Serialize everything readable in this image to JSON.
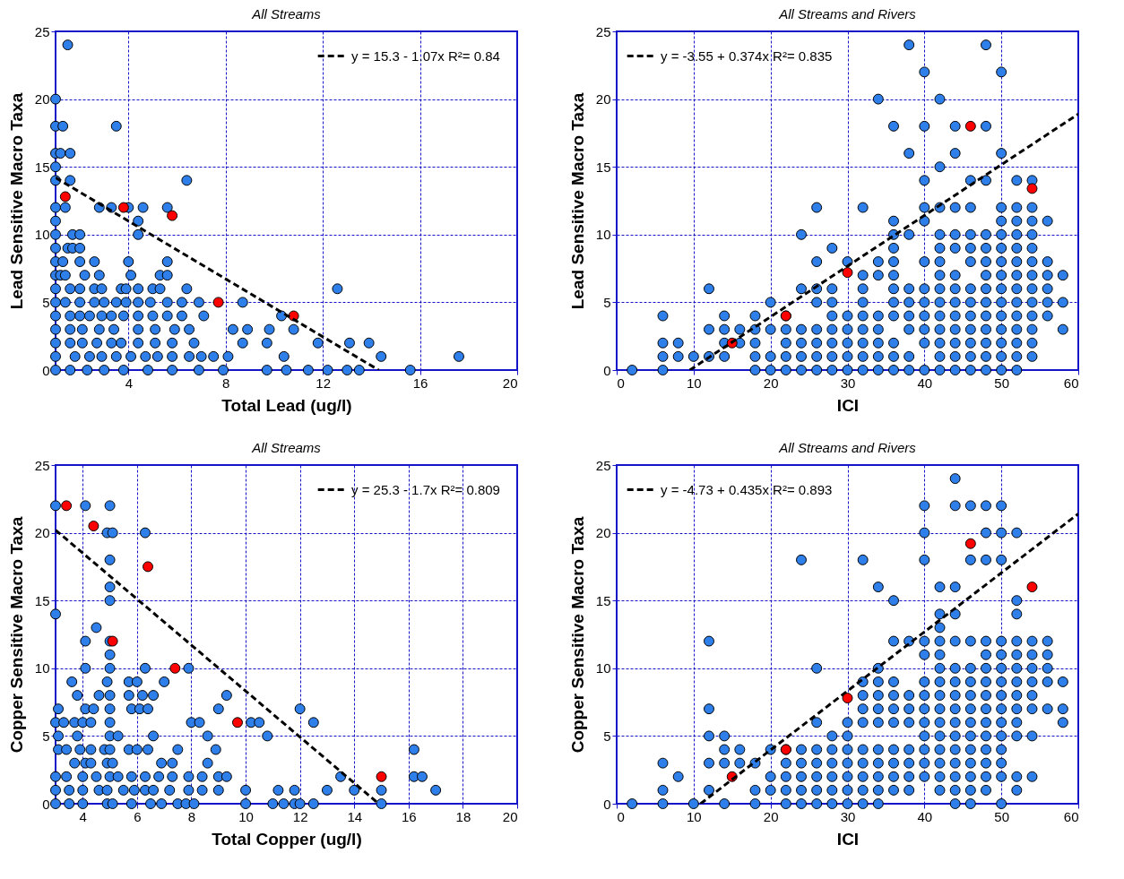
{
  "chart_data": [
    {
      "type": "scatter",
      "title": "All Streams",
      "xlabel": "Total Lead (ug/l)",
      "ylabel": "Lead Sensitive Macro Taxa",
      "xlim": [
        1,
        20
      ],
      "xticks": [
        4,
        8,
        12,
        16,
        20
      ],
      "ylim": [
        0,
        25
      ],
      "yticks": [
        0,
        5,
        10,
        15,
        20,
        25
      ],
      "grid": true,
      "legend": "top right",
      "marker": "circle",
      "series": [
        {
          "color": "#2f7fea",
          "x": [
            1.5,
            1.0,
            1.0,
            1.3,
            3.5,
            1.0,
            1.2,
            1.6,
            1.0,
            1.0,
            1.6,
            6.4,
            1.0,
            1.4,
            2.8,
            3.3,
            4.0,
            4.6,
            5.6,
            1.0,
            4.4,
            1.0,
            1.7,
            2.0,
            4.4,
            1.0,
            1.5,
            1.7,
            2.0,
            1.0,
            1.3,
            2.0,
            2.6,
            4.0,
            5.6,
            1.0,
            1.2,
            1.4,
            2.2,
            2.8,
            4.1,
            5.3,
            5.6,
            1.0,
            1.6,
            2.0,
            2.6,
            2.9,
            3.7,
            3.9,
            4.4,
            5.0,
            5.3,
            6.4,
            12.6,
            1.0,
            1.4,
            2.0,
            2.6,
            3.0,
            3.5,
            3.9,
            4.4,
            4.9,
            5.6,
            6.2,
            6.9,
            8.7,
            1.0,
            1.6,
            2.0,
            2.4,
            2.9,
            3.3,
            3.8,
            4.4,
            5.0,
            5.6,
            6.2,
            7.1,
            10.3,
            1.0,
            1.6,
            2.1,
            2.8,
            3.4,
            4.4,
            5.1,
            5.9,
            6.5,
            8.3,
            8.9,
            9.8,
            10.8,
            1.0,
            1.6,
            2.1,
            2.7,
            3.3,
            3.7,
            4.4,
            5.1,
            5.8,
            6.7,
            8.7,
            9.7,
            11.8,
            13.1,
            13.9,
            1.0,
            1.8,
            2.4,
            2.9,
            3.5,
            4.1,
            4.7,
            5.2,
            5.8,
            6.5,
            7.0,
            7.5,
            8.1,
            10.4,
            14.4,
            17.6,
            1.0,
            1.6,
            2.3,
            3.0,
            3.8,
            4.8,
            5.8,
            6.9,
            7.9,
            9.7,
            10.5,
            11.4,
            12.2,
            13.0,
            13.5,
            15.6
          ],
          "values": [
            24,
            20,
            18,
            18,
            18,
            16,
            16,
            16,
            15,
            14,
            14,
            14,
            12,
            12,
            12,
            12,
            12,
            12,
            12,
            11,
            11,
            10,
            10,
            10,
            10,
            9,
            9,
            9,
            9,
            8,
            8,
            8,
            8,
            8,
            8,
            7,
            7,
            7,
            7,
            7,
            7,
            7,
            7,
            6,
            6,
            6,
            6,
            6,
            6,
            6,
            6,
            6,
            6,
            6,
            6,
            5,
            5,
            5,
            5,
            5,
            5,
            5,
            5,
            5,
            5,
            5,
            5,
            5,
            4,
            4,
            4,
            4,
            4,
            4,
            4,
            4,
            4,
            4,
            4,
            4,
            4,
            3,
            3,
            3,
            3,
            3,
            3,
            3,
            3,
            3,
            3,
            3,
            3,
            3,
            2,
            2,
            2,
            2,
            2,
            2,
            2,
            2,
            2,
            2,
            2,
            2,
            2,
            2,
            2,
            1,
            1,
            1,
            1,
            1,
            1,
            1,
            1,
            1,
            1,
            1,
            1,
            1,
            1,
            1,
            1,
            0,
            0,
            0,
            0,
            0,
            0,
            0,
            0,
            0,
            0,
            0,
            0,
            0,
            0,
            0,
            0
          ]
        },
        {
          "color": "#ff0000",
          "x": [
            1.4,
            3.8,
            5.8,
            7.7,
            10.8
          ],
          "values": [
            12.8,
            12,
            11.4,
            5,
            4
          ]
        },
        {
          "type": "line",
          "name": "y = 15.3 - 1.07x   R²= 0.84",
          "color": "#000000",
          "line_style": "dashed",
          "marker": "none",
          "x": [
            1,
            14.3
          ],
          "values": [
            14.2,
            0
          ]
        }
      ]
    },
    {
      "type": "scatter",
      "title": "All Streams and Rivers",
      "xlabel": "ICI",
      "ylabel": "Lead Sensitive Macro Taxa",
      "xlim": [
        0,
        60
      ],
      "xticks": [
        0,
        10,
        20,
        30,
        40,
        50,
        60
      ],
      "ylim": [
        0,
        25
      ],
      "yticks": [
        0,
        5,
        10,
        15,
        20,
        25
      ],
      "grid": true,
      "legend": "top left",
      "marker": "circle",
      "series": [
        {
          "color": "#2f7fea",
          "x": [
            2,
            6,
            6,
            6,
            6,
            8,
            8,
            10,
            12,
            12,
            12,
            14,
            14,
            14,
            14,
            16,
            16,
            18,
            18,
            18,
            18,
            18,
            20,
            20,
            20,
            20,
            22,
            22,
            22,
            22,
            22,
            24,
            24,
            24,
            24,
            24,
            24,
            26,
            26,
            26,
            26,
            26,
            26,
            26,
            26,
            28,
            28,
            28,
            28,
            28,
            28,
            28,
            28,
            30,
            30,
            30,
            30,
            30,
            30,
            32,
            32,
            32,
            32,
            32,
            32,
            32,
            32,
            32,
            34,
            34,
            34,
            34,
            34,
            34,
            34,
            34,
            36,
            36,
            36,
            36,
            36,
            36,
            36,
            36,
            36,
            36,
            36,
            36,
            38,
            38,
            38,
            38,
            38,
            38,
            38,
            38,
            38,
            40,
            40,
            40,
            40,
            40,
            40,
            40,
            40,
            40,
            40,
            40,
            40,
            42,
            42,
            42,
            42,
            42,
            42,
            42,
            42,
            42,
            42,
            42,
            42,
            42,
            42,
            44,
            44,
            44,
            44,
            44,
            44,
            44,
            44,
            44,
            44,
            44,
            44,
            44,
            46,
            46,
            46,
            46,
            46,
            46,
            46,
            46,
            46,
            46,
            46,
            46,
            48,
            48,
            48,
            48,
            48,
            48,
            48,
            48,
            48,
            48,
            48,
            48,
            48,
            48,
            50,
            50,
            50,
            50,
            50,
            50,
            50,
            50,
            50,
            50,
            50,
            50,
            50,
            50,
            50,
            52,
            52,
            52,
            52,
            52,
            52,
            52,
            52,
            52,
            52,
            52,
            52,
            52,
            52,
            54,
            54,
            54,
            54,
            54,
            54,
            54,
            54,
            54,
            54,
            54,
            54,
            54,
            56,
            56,
            56,
            56,
            56,
            56,
            58,
            58,
            58
          ],
          "values": [
            0,
            0,
            1,
            2,
            4,
            1,
            2,
            1,
            1,
            3,
            6,
            1,
            2,
            3,
            4,
            2,
            3,
            0,
            1,
            2,
            3,
            4,
            0,
            1,
            3,
            5,
            0,
            1,
            2,
            3,
            4,
            0,
            1,
            2,
            3,
            6,
            10,
            0,
            1,
            2,
            3,
            5,
            6,
            8,
            12,
            0,
            1,
            2,
            3,
            4,
            5,
            6,
            9,
            0,
            1,
            2,
            3,
            4,
            8,
            0,
            1,
            2,
            3,
            4,
            5,
            6,
            7,
            12,
            0,
            1,
            2,
            3,
            4,
            7,
            8,
            20,
            0,
            1,
            2,
            4,
            5,
            6,
            7,
            8,
            9,
            10,
            11,
            18,
            0,
            1,
            3,
            4,
            5,
            6,
            10,
            16,
            24,
            0,
            2,
            3,
            4,
            5,
            6,
            8,
            11,
            12,
            14,
            18,
            22,
            0,
            1,
            2,
            3,
            4,
            5,
            6,
            7,
            8,
            9,
            10,
            12,
            15,
            20,
            0,
            1,
            2,
            3,
            4,
            5,
            6,
            7,
            9,
            10,
            12,
            16,
            18,
            0,
            1,
            2,
            3,
            4,
            5,
            6,
            8,
            9,
            10,
            12,
            14,
            0,
            1,
            2,
            3,
            4,
            5,
            6,
            7,
            8,
            9,
            10,
            14,
            18,
            24,
            0,
            1,
            2,
            3,
            4,
            5,
            6,
            7,
            8,
            9,
            10,
            11,
            12,
            16,
            22,
            0,
            1,
            2,
            3,
            4,
            5,
            6,
            7,
            8,
            9,
            10,
            11,
            12,
            14,
            1,
            2,
            3,
            4,
            5,
            6,
            7,
            8,
            9,
            10,
            11,
            12,
            14,
            4,
            5,
            6,
            7,
            8,
            11,
            3,
            5,
            7
          ]
        },
        {
          "color": "#ff0000",
          "x": [
            15,
            22,
            30,
            46,
            54
          ],
          "values": [
            2,
            4,
            7.2,
            18,
            13.4
          ]
        },
        {
          "type": "line",
          "name": "y = -3.55 + 0.374x   R²= 0.835",
          "color": "#000000",
          "line_style": "dashed",
          "marker": "none",
          "x": [
            9.5,
            60
          ],
          "values": [
            0,
            18.9
          ]
        }
      ]
    },
    {
      "type": "scatter",
      "title": "All Streams",
      "xlabel": "Total Copper (ug/l)",
      "ylabel": "Copper Sensitive Macro Taxa",
      "xlim": [
        3,
        20
      ],
      "xticks": [
        4,
        6,
        8,
        10,
        12,
        14,
        16,
        18,
        20
      ],
      "ylim": [
        0,
        25
      ],
      "yticks": [
        0,
        5,
        10,
        15,
        20,
        25
      ],
      "grid": true,
      "legend": "top right",
      "marker": "circle",
      "series": [
        {
          "color": "#2f7fea",
          "x": [
            3.0,
            4.1,
            5.0,
            4.9,
            5.1,
            6.3,
            5.0,
            5.0,
            5.0,
            3.0,
            4.5,
            4.1,
            5.0,
            5.0,
            4.1,
            5.0,
            6.3,
            7.9,
            3.6,
            4.9,
            5.7,
            6.0,
            7.0,
            3.8,
            4.6,
            5.0,
            5.7,
            6.2,
            6.6,
            9.3,
            3.1,
            4.1,
            4.4,
            5.0,
            5.8,
            6.1,
            6.4,
            9.0,
            12.0,
            3.0,
            3.3,
            3.7,
            4.0,
            4.3,
            5.0,
            8.0,
            8.3,
            10.2,
            10.5,
            12.5,
            3.1,
            3.8,
            5.0,
            5.3,
            6.6,
            8.6,
            10.8,
            3.1,
            3.4,
            3.9,
            4.3,
            4.8,
            5.0,
            5.7,
            6.0,
            6.4,
            7.5,
            8.9,
            16.2,
            3.7,
            4.1,
            4.3,
            4.9,
            5.1,
            6.9,
            7.3,
            8.6,
            3.0,
            3.4,
            4.0,
            4.5,
            5.0,
            5.3,
            5.8,
            6.3,
            6.8,
            7.3,
            7.9,
            8.4,
            9.0,
            9.3,
            13.5,
            16.2,
            16.5,
            3.0,
            3.5,
            4.0,
            4.6,
            4.9,
            5.5,
            5.9,
            6.3,
            6.6,
            7.2,
            7.9,
            8.4,
            9.0,
            10.0,
            11.2,
            11.8,
            13.0,
            14.0,
            15.0,
            17.0,
            3.0,
            3.5,
            4.0,
            4.9,
            5.1,
            5.8,
            6.5,
            6.9,
            7.5,
            7.8,
            8.1,
            10.0,
            11.0,
            11.4,
            11.8,
            12.0,
            12.5,
            15.0
          ],
          "values": [
            22,
            22,
            22,
            20,
            20,
            20,
            18,
            16,
            15,
            14,
            13,
            12,
            12,
            11,
            10,
            10,
            10,
            10,
            9,
            9,
            9,
            9,
            9,
            8,
            8,
            8,
            8,
            8,
            8,
            8,
            7,
            7,
            7,
            7,
            7,
            7,
            7,
            7,
            7,
            6,
            6,
            6,
            6,
            6,
            6,
            6,
            6,
            6,
            6,
            6,
            5,
            5,
            5,
            5,
            5,
            5,
            5,
            4,
            4,
            4,
            4,
            4,
            4,
            4,
            4,
            4,
            4,
            4,
            4,
            3,
            3,
            3,
            3,
            3,
            3,
            3,
            3,
            2,
            2,
            2,
            2,
            2,
            2,
            2,
            2,
            2,
            2,
            2,
            2,
            2,
            2,
            2,
            2,
            2,
            1,
            1,
            1,
            1,
            1,
            1,
            1,
            1,
            1,
            1,
            1,
            1,
            1,
            1,
            1,
            1,
            1,
            1,
            1,
            1,
            0,
            0,
            0,
            0,
            0,
            0,
            0,
            0,
            0,
            0,
            0,
            0,
            0,
            0,
            0,
            0,
            0,
            0
          ]
        },
        {
          "color": "#ff0000",
          "x": [
            3.4,
            4.4,
            5.1,
            6.4,
            7.4,
            9.7,
            15.0
          ],
          "values": [
            22,
            20.5,
            12,
            17.5,
            10,
            6,
            2
          ]
        },
        {
          "type": "line",
          "name": "y = 25.3 - 1.7x   R²= 0.809",
          "color": "#000000",
          "line_style": "dashed",
          "marker": "none",
          "x": [
            3,
            14.9
          ],
          "values": [
            20.2,
            0
          ]
        }
      ]
    },
    {
      "type": "scatter",
      "title": "All Streams and Rivers",
      "xlabel": "ICI",
      "ylabel": "Copper Sensitive Macro Taxa",
      "xlim": [
        0,
        60
      ],
      "xticks": [
        0,
        10,
        20,
        30,
        40,
        50,
        60
      ],
      "ylim": [
        0,
        25
      ],
      "yticks": [
        0,
        5,
        10,
        15,
        20,
        25
      ],
      "grid": true,
      "legend": "top left",
      "marker": "circle",
      "series": [
        {
          "color": "#2f7fea",
          "x": [
            2,
            6,
            6,
            6,
            8,
            10,
            12,
            12,
            12,
            12,
            12,
            14,
            14,
            14,
            14,
            16,
            16,
            18,
            18,
            18,
            20,
            20,
            20,
            22,
            22,
            22,
            22,
            22,
            24,
            24,
            24,
            24,
            24,
            24,
            26,
            26,
            26,
            26,
            26,
            26,
            26,
            28,
            28,
            28,
            28,
            28,
            28,
            30,
            30,
            30,
            30,
            30,
            30,
            30,
            32,
            32,
            32,
            32,
            32,
            32,
            32,
            32,
            32,
            32,
            34,
            34,
            34,
            34,
            34,
            34,
            34,
            34,
            34,
            34,
            34,
            36,
            36,
            36,
            36,
            36,
            36,
            36,
            36,
            36,
            36,
            38,
            38,
            38,
            38,
            38,
            38,
            38,
            38,
            40,
            40,
            40,
            40,
            40,
            40,
            40,
            40,
            40,
            40,
            40,
            40,
            40,
            42,
            42,
            42,
            42,
            42,
            42,
            42,
            42,
            42,
            42,
            42,
            42,
            42,
            42,
            42,
            44,
            44,
            44,
            44,
            44,
            44,
            44,
            44,
            44,
            44,
            44,
            44,
            44,
            44,
            44,
            44,
            46,
            46,
            46,
            46,
            46,
            46,
            46,
            46,
            46,
            46,
            46,
            46,
            46,
            46,
            48,
            48,
            48,
            48,
            48,
            48,
            48,
            48,
            48,
            48,
            48,
            48,
            48,
            48,
            48,
            50,
            50,
            50,
            50,
            50,
            50,
            50,
            50,
            50,
            50,
            50,
            50,
            50,
            50,
            50,
            52,
            52,
            52,
            52,
            52,
            52,
            52,
            52,
            52,
            52,
            52,
            52,
            52,
            54,
            54,
            54,
            54,
            54,
            54,
            54,
            54,
            56,
            56,
            56,
            56,
            56,
            58,
            58,
            58
          ],
          "values": [
            0,
            0,
            1,
            3,
            2,
            0,
            1,
            3,
            5,
            7,
            12,
            0,
            3,
            4,
            5,
            3,
            4,
            0,
            1,
            3,
            1,
            2,
            4,
            0,
            1,
            2,
            3,
            4,
            0,
            1,
            2,
            3,
            4,
            18,
            0,
            1,
            2,
            3,
            4,
            6,
            10,
            0,
            1,
            2,
            3,
            4,
            5,
            0,
            1,
            2,
            3,
            4,
            5,
            6,
            0,
            1,
            2,
            3,
            4,
            6,
            7,
            8,
            9,
            18,
            0,
            1,
            2,
            3,
            4,
            6,
            7,
            8,
            9,
            10,
            16,
            1,
            2,
            3,
            4,
            6,
            7,
            8,
            9,
            12,
            15,
            1,
            2,
            3,
            4,
            6,
            7,
            8,
            12,
            2,
            3,
            4,
            5,
            6,
            7,
            8,
            9,
            11,
            12,
            18,
            20,
            22,
            1,
            2,
            3,
            4,
            5,
            6,
            7,
            8,
            9,
            10,
            11,
            12,
            13,
            14,
            16,
            0,
            1,
            2,
            3,
            4,
            5,
            6,
            7,
            8,
            9,
            10,
            12,
            14,
            16,
            22,
            24,
            0,
            1,
            2,
            3,
            4,
            5,
            6,
            7,
            8,
            9,
            10,
            12,
            18,
            22,
            1,
            2,
            3,
            4,
            5,
            6,
            7,
            8,
            9,
            10,
            11,
            12,
            18,
            20,
            22,
            0,
            2,
            3,
            4,
            5,
            6,
            7,
            8,
            9,
            10,
            11,
            12,
            18,
            20,
            22,
            1,
            2,
            5,
            6,
            7,
            8,
            9,
            10,
            11,
            12,
            14,
            15,
            20,
            2,
            5,
            7,
            8,
            9,
            10,
            11,
            12,
            7,
            9,
            10,
            11,
            12,
            6,
            7,
            9
          ]
        },
        {
          "color": "#ff0000",
          "x": [
            15,
            22,
            30,
            46,
            54
          ],
          "values": [
            2,
            4,
            7.8,
            19.2,
            16
          ]
        },
        {
          "type": "line",
          "name": "y = -4.73 + 0.435x   R²= 0.893",
          "color": "#000000",
          "line_style": "dashed",
          "marker": "none",
          "x": [
            10.9,
            60
          ],
          "values": [
            0,
            21.4
          ]
        }
      ]
    }
  ]
}
